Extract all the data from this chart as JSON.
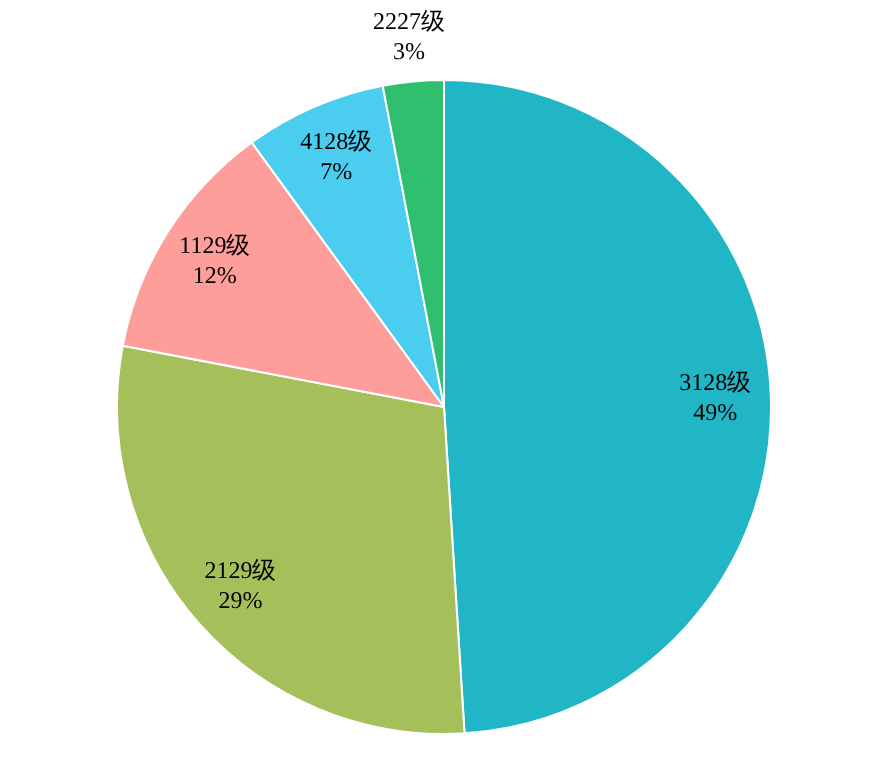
{
  "chart_data": {
    "type": "pie",
    "categories": [
      "3128级",
      "2129级",
      "1129级",
      "4128级",
      "2227级"
    ],
    "values": [
      49,
      29,
      12,
      7,
      3
    ],
    "value_labels": [
      "49%",
      "29%",
      "12%",
      "7%",
      "3%"
    ],
    "colors": [
      "#21b6c5",
      "#a5c05b",
      "#fe9e9b",
      "#4bcdef",
      "#2fbf6e"
    ],
    "legend": false
  }
}
